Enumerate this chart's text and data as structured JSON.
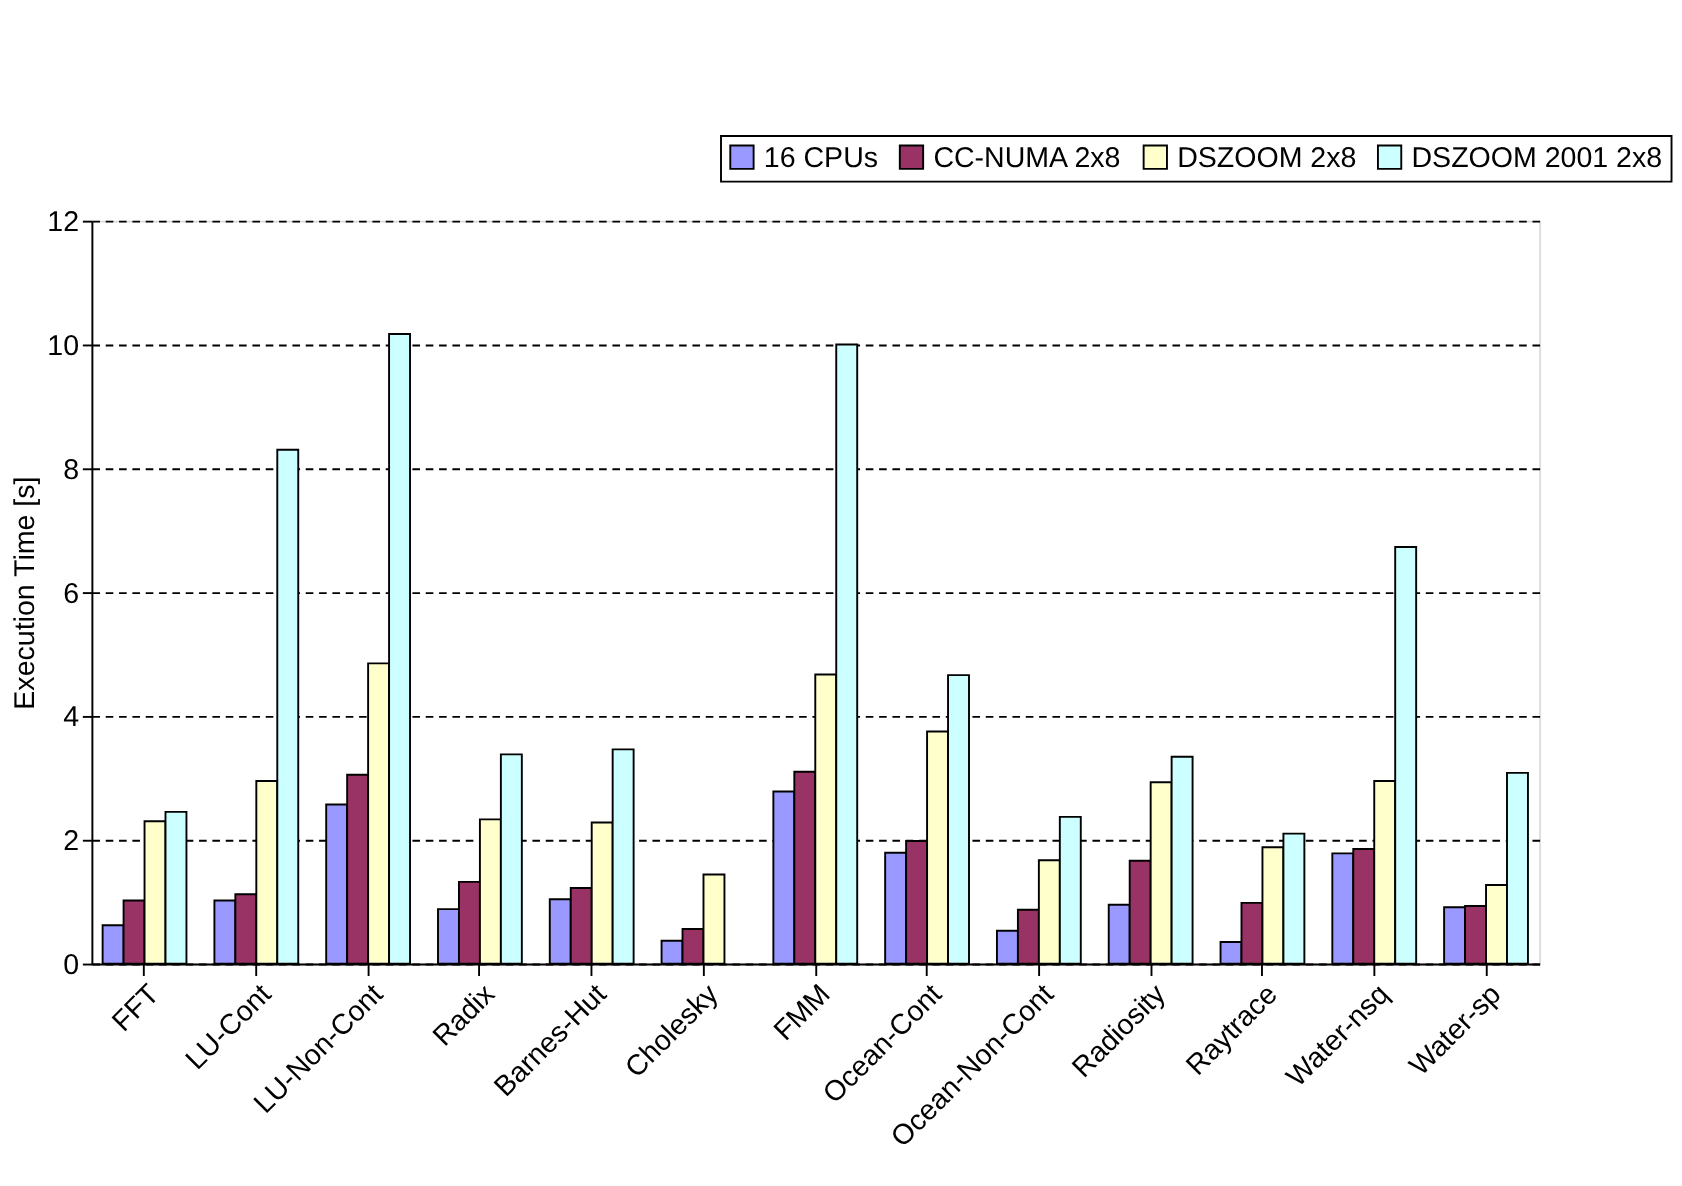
{
  "chart_data": {
    "type": "bar",
    "ylabel": "Execution Time [s]",
    "categories": [
      "FFT",
      "LU-Cont",
      "LU-Non-Cont",
      "Radix",
      "Barnes-Hut",
      "Cholesky",
      "FMM",
      "Ocean-Cont",
      "Ocean-Non-Cont",
      "Radiosity",
      "Raytrace",
      "Water-nsq",
      "Water-sp"
    ],
    "series": [
      {
        "name": "16 CPUs",
        "color": "#9999ff",
        "values": [
          0.62,
          1.02,
          2.57,
          0.88,
          1.04,
          0.37,
          2.78,
          1.79,
          0.53,
          0.95,
          0.35,
          1.78,
          0.91
        ]
      },
      {
        "name": "CC-NUMA 2x8",
        "color": "#993366",
        "values": [
          1.02,
          1.12,
          3.05,
          1.32,
          1.22,
          0.56,
          3.1,
          1.98,
          0.87,
          1.66,
          0.98,
          1.85,
          0.93
        ]
      },
      {
        "name": "DSZOOM 2x8",
        "color": "#ffffcc",
        "values": [
          2.3,
          2.95,
          4.85,
          2.33,
          2.28,
          1.44,
          4.67,
          3.75,
          1.67,
          2.93,
          1.88,
          2.95,
          1.27
        ]
      },
      {
        "name": "DSZOOM 2001 2x8",
        "color": "#ccffff",
        "values": [
          2.45,
          8.3,
          10.17,
          3.38,
          3.46,
          null,
          10.0,
          4.66,
          2.37,
          3.34,
          2.1,
          6.73,
          3.08
        ]
      }
    ],
    "ylim": [
      0,
      12
    ],
    "yticks": [
      0,
      2,
      4,
      6,
      8,
      10,
      12
    ],
    "grid": "y",
    "legend": "top right"
  }
}
